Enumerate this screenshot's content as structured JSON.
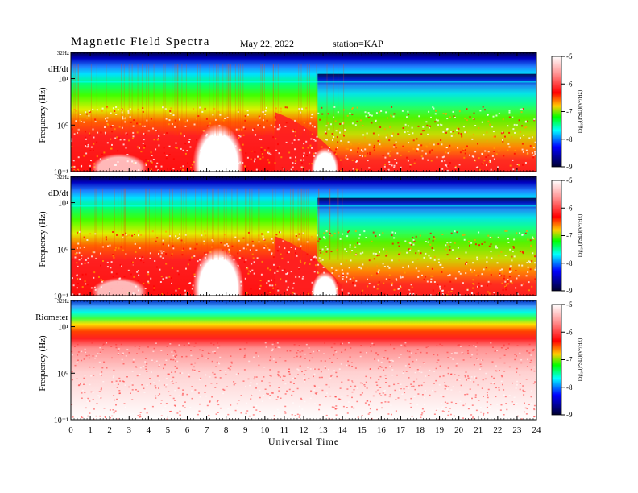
{
  "header": {
    "title": "Magnetic Field Spectra",
    "date": "May 22, 2022",
    "station": "station=KAP"
  },
  "chart_data": {
    "type": "heatmap",
    "xlabel": "Universal Time",
    "x_ticks": [
      "0",
      "1",
      "2",
      "3",
      "4",
      "5",
      "6",
      "7",
      "8",
      "9",
      "10",
      "11",
      "12",
      "13",
      "14",
      "15",
      "16",
      "17",
      "18",
      "19",
      "20",
      "21",
      "22",
      "23",
      "24"
    ],
    "xlim": [
      0,
      24
    ],
    "panels": [
      {
        "label": "dH/dt",
        "ylabel": "Frequency (Hz)",
        "y_top_label": "32Hz",
        "y_ticks": [
          "10¹",
          "10⁰",
          "10⁻¹"
        ],
        "colorbar_ticks": [
          "-5",
          "-6",
          "-7",
          "-8",
          "-9"
        ],
        "colorbar_label": "log₁₀(PSD)(V²/Hz)"
      },
      {
        "label": "dD/dt",
        "ylabel": "Frequency (Hz)",
        "y_top_label": "32Hz",
        "y_ticks": [
          "10¹",
          "10⁰",
          "10⁻¹"
        ],
        "colorbar_ticks": [
          "-5",
          "-6",
          "-7",
          "-8",
          "-9"
        ],
        "colorbar_label": "log₁₀(PSD)(V²/Hz)"
      },
      {
        "label": "Riometer",
        "ylabel": "Frequency (Hz)",
        "y_top_label": "32Hz",
        "y_ticks": [
          "10¹",
          "10⁰",
          "10⁻¹"
        ],
        "colorbar_ticks": [
          "-5",
          "-6",
          "-7",
          "-8",
          "-9"
        ],
        "colorbar_label": "log₁₀(PSD)(V²/Hz)"
      }
    ],
    "colormap": [
      "#ffffff",
      "#ff0000",
      "#ffff00",
      "#00ff00",
      "#00ffff",
      "#0000ff",
      "#000080"
    ]
  }
}
